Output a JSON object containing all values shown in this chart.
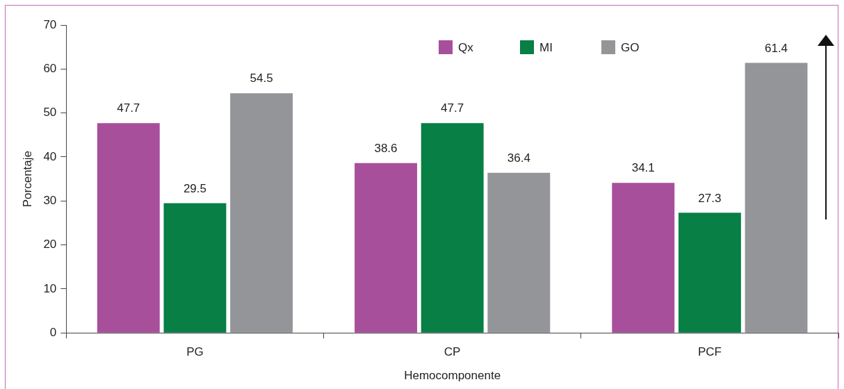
{
  "chart_data": {
    "type": "bar",
    "xlabel": "Hemocomponente",
    "ylabel": "Porcentaje",
    "categories": [
      "PG",
      "CP",
      "PCF"
    ],
    "series": [
      {
        "name": "Qx",
        "color": "#a84f9c",
        "values": [
          47.7,
          38.6,
          34.1
        ]
      },
      {
        "name": "MI",
        "color": "#077f45",
        "values": [
          29.5,
          47.7,
          27.3
        ]
      },
      {
        "name": "GO",
        "color": "#939598",
        "values": [
          54.5,
          36.4,
          61.4
        ]
      }
    ],
    "ylim": [
      0,
      70
    ],
    "yticks": [
      0,
      10,
      20,
      30,
      40,
      50,
      60,
      70
    ],
    "grid": false,
    "legend": "top right",
    "data_labels": true
  }
}
